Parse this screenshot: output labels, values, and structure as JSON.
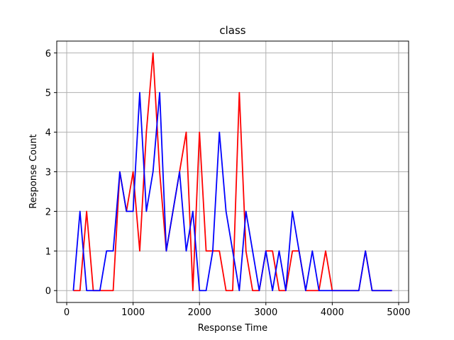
{
  "chart_data": {
    "type": "line",
    "title": "class",
    "xlabel": "Response Time",
    "ylabel": "Response Count",
    "xlim": [
      -150,
      5150
    ],
    "ylim": [
      -0.3,
      6.3
    ],
    "xticks": [
      0,
      1000,
      2000,
      3000,
      4000,
      5000
    ],
    "yticks": [
      0,
      1,
      2,
      3,
      4,
      5,
      6
    ],
    "grid": true,
    "legend": "none",
    "series": [
      {
        "color": "#ff0000",
        "x": [
          100,
          200,
          300,
          400,
          500,
          600,
          700,
          800,
          900,
          1000,
          1100,
          1200,
          1300,
          1400,
          1500,
          1600,
          1700,
          1800,
          1900,
          2000,
          2100,
          2200,
          2300,
          2400,
          2500,
          2600,
          2700,
          2800,
          2900,
          3000,
          3100,
          3200,
          3300,
          3400,
          3500,
          3600,
          3700,
          3800,
          3900,
          4000,
          4100,
          4200,
          4300,
          4400,
          4500,
          4600,
          4700,
          4800,
          4900
        ],
        "y": [
          0,
          0,
          2,
          0,
          0,
          0,
          0,
          3,
          2,
          3,
          1,
          4,
          6,
          3,
          1,
          2,
          3,
          4,
          0,
          4,
          1,
          1,
          1,
          0,
          0,
          5,
          1,
          0,
          0,
          1,
          1,
          0,
          0,
          1,
          1,
          0,
          0,
          0,
          1,
          0,
          0,
          0,
          0,
          0,
          1,
          0,
          0,
          0,
          0
        ]
      },
      {
        "color": "#0000ff",
        "x": [
          100,
          200,
          300,
          400,
          500,
          600,
          700,
          800,
          900,
          1000,
          1100,
          1200,
          1300,
          1400,
          1500,
          1600,
          1700,
          1800,
          1900,
          2000,
          2100,
          2200,
          2300,
          2400,
          2500,
          2600,
          2700,
          2800,
          2900,
          3000,
          3100,
          3200,
          3300,
          3400,
          3500,
          3600,
          3700,
          3800,
          3900,
          4000,
          4100,
          4200,
          4300,
          4400,
          4500,
          4600,
          4700,
          4800,
          4900
        ],
        "y": [
          0,
          2,
          0,
          0,
          0,
          1,
          1,
          3,
          2,
          2,
          5,
          2,
          3,
          5,
          1,
          2,
          3,
          1,
          2,
          0,
          0,
          1,
          4,
          2,
          1,
          0,
          2,
          1,
          0,
          1,
          0,
          1,
          0,
          2,
          1,
          0,
          1,
          0,
          0,
          0,
          0,
          0,
          0,
          0,
          1,
          0,
          0,
          0,
          0
        ]
      }
    ]
  }
}
